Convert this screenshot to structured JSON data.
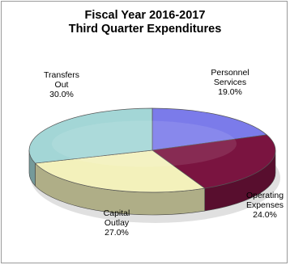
{
  "chart_data": {
    "type": "pie",
    "title": "Fiscal Year 2016-2017",
    "subtitle": "Third Quarter Expenditures",
    "slices": [
      {
        "name_lines": [
          "Personnel",
          "Services"
        ],
        "value": 19.0,
        "pct_label": "19.0%",
        "color": "#7b7bea"
      },
      {
        "name_lines": [
          "Operating",
          "Expenses"
        ],
        "value": 24.0,
        "pct_label": "24.0%",
        "color": "#7a1440"
      },
      {
        "name_lines": [
          "Capital",
          "Outlay"
        ],
        "value": 27.0,
        "pct_label": "27.0%",
        "color": "#f3f1bb"
      },
      {
        "name_lines": [
          "Transfers",
          "Out"
        ],
        "value": 30.0,
        "pct_label": "30.0%",
        "color": "#a3d6d6"
      }
    ],
    "legend": "none",
    "three_d": true
  }
}
